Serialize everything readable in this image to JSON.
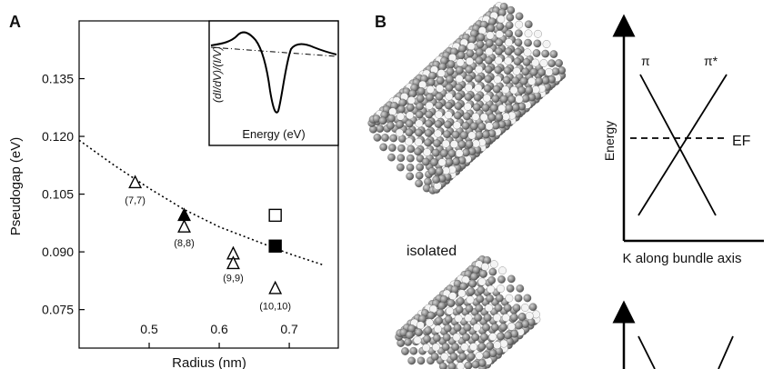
{
  "panel_a": {
    "letter": "A",
    "chart_data": {
      "type": "scatter",
      "xlabel": "Radius (nm)",
      "ylabel": "Pseudogap (eV)",
      "xlim": [
        0.4,
        0.77
      ],
      "ylim": [
        0.065,
        0.15
      ],
      "xticks": [
        0.5,
        0.6,
        0.7
      ],
      "yticks": [
        0.075,
        0.09,
        0.105,
        0.12,
        0.135
      ],
      "xtick_labels": [
        "0.5",
        "0.6",
        "0.7"
      ],
      "ytick_labels": [
        "0.075",
        "0.090",
        "0.105",
        "0.120",
        "0.135"
      ],
      "grid": false,
      "points": [
        {
          "x": 0.48,
          "y": 0.108,
          "marker": "open-triangle"
        },
        {
          "x": 0.55,
          "y": 0.0995,
          "marker": "filled-triangle"
        },
        {
          "x": 0.55,
          "y": 0.0965,
          "marker": "open-triangle"
        },
        {
          "x": 0.62,
          "y": 0.0895,
          "marker": "open-triangle"
        },
        {
          "x": 0.62,
          "y": 0.087,
          "marker": "open-triangle"
        },
        {
          "x": 0.68,
          "y": 0.0805,
          "marker": "open-triangle"
        },
        {
          "x": 0.68,
          "y": 0.0995,
          "marker": "open-square"
        },
        {
          "x": 0.68,
          "y": 0.0915,
          "marker": "filled-square"
        }
      ],
      "point_labels": [
        {
          "text": "(7,7)",
          "x": 0.48,
          "y": 0.1025
        },
        {
          "text": "(8,8)",
          "x": 0.55,
          "y": 0.0915
        },
        {
          "text": "(9,9)",
          "x": 0.62,
          "y": 0.0823
        },
        {
          "text": "(10,10)",
          "x": 0.68,
          "y": 0.075
        }
      ],
      "fit_curve": {
        "style": "dotted",
        "x": [
          0.4,
          0.45,
          0.5,
          0.55,
          0.6,
          0.65,
          0.7,
          0.75
        ],
        "y": [
          0.119,
          0.1125,
          0.1065,
          0.101,
          0.0965,
          0.093,
          0.0895,
          0.0865
        ]
      }
    },
    "inset": {
      "xlabel": "Energy (eV)",
      "ylabel": "(dI/dV)/(I/V)"
    }
  },
  "panel_b": {
    "letter": "B",
    "caption_isolated": "isolated",
    "diagram": {
      "ylabel": "Energy",
      "xlabel": "K along bundle axis",
      "band_left": "π",
      "band_right": "π*",
      "fermi_label": "EF"
    }
  }
}
